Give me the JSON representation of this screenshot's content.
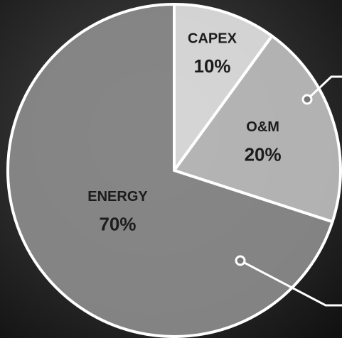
{
  "chart_data": {
    "type": "pie",
    "categories": [
      "CAPEX",
      "O&M",
      "ENERGY"
    ],
    "values": [
      10,
      20,
      70
    ],
    "value_labels": [
      "10%",
      "20%",
      "70%"
    ],
    "colors": [
      "#e2e2e2",
      "#bebebe",
      "#8c8c8c"
    ]
  }
}
